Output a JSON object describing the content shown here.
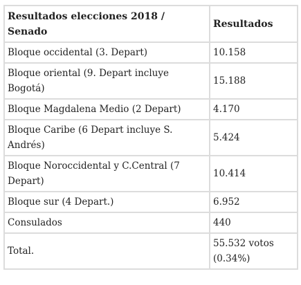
{
  "table": {
    "headers": [
      "Resultados elecciones 2018 / Senado",
      "Resultados"
    ],
    "rows": [
      {
        "label": "Bloque occidental (3. Depart)",
        "value": "10.158"
      },
      {
        "label": "Bloque oriental (9. Depart incluye Bogotá)",
        "value": "15.188"
      },
      {
        "label": "Bloque Magdalena Medio (2 Depart)",
        "value": "4.170"
      },
      {
        "label": "Bloque Caribe (6 Depart incluye S. Andrés)",
        "value": "5.424"
      },
      {
        "label": "Bloque Noroccidental y C.Central (7 Depart)",
        "value": "10.414"
      },
      {
        "label": "Bloque sur (4 Depart.)",
        "value": "6.952"
      },
      {
        "label": "Consulados",
        "value": "440"
      },
      {
        "label": "Total.",
        "value": "55.532 votos (0.34%)"
      }
    ]
  }
}
